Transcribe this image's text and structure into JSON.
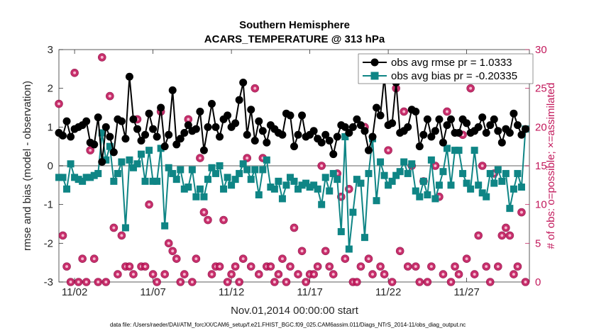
{
  "chart_data": {
    "type": "line",
    "title": "Southern Hemisphere",
    "subtitle": "ACARS_TEMPERATURE @ 313 hPa",
    "xlabel": "Nov.01,2014 00:00:00 start",
    "ylabel": "rmse and bias (model - observation)",
    "ylabel_right": "# of obs: o=possible; ×=assimilated",
    "footnote": "data file: /Users/raeder/DAI/ATM_forcXX/CAM6_setup/f.e21.FHIST_BGC.f09_025.CAM6assim.011/Diags_NTrS_2014-11/obs_diag_output.nc",
    "xlim": [
      0,
      30
    ],
    "ylim": [
      -3,
      3
    ],
    "ylim_right": [
      0,
      30
    ],
    "x_ticks": [
      1,
      6,
      11,
      16,
      21,
      26
    ],
    "x_tick_labels": [
      "11/02",
      "11/07",
      "11/12",
      "11/17",
      "11/22",
      "11/27"
    ],
    "y_ticks": [
      -3,
      -2,
      -1,
      0,
      1,
      2,
      3
    ],
    "y_tick_labels": [
      "-3",
      "-2",
      "-1",
      "0",
      "1",
      "2",
      "3"
    ],
    "y_ticks_right": [
      0,
      5,
      10,
      15,
      20,
      25,
      30
    ],
    "y_tick_labels_right": [
      "0",
      "5",
      "10",
      "15",
      "20",
      "25",
      "30"
    ],
    "legend_position": "top-right",
    "grid": false,
    "zero_line": true,
    "colors": {
      "rmse": "#000000",
      "bias": "#0f8585",
      "nobs": "#c2185b",
      "zero": "#a6a6a6"
    },
    "series": [
      {
        "name": "obs avg rmse pr = 1.0333",
        "axis": "left",
        "x": [
          0.0,
          0.25,
          0.5,
          0.75,
          1.0,
          1.25,
          1.5,
          1.75,
          2.0,
          2.25,
          2.5,
          2.75,
          3.0,
          3.25,
          3.5,
          3.75,
          4.0,
          4.25,
          4.5,
          4.75,
          5.0,
          5.25,
          5.5,
          5.75,
          6.0,
          6.25,
          6.5,
          6.75,
          7.0,
          7.25,
          7.5,
          7.75,
          8.0,
          8.25,
          8.5,
          8.75,
          9.0,
          9.25,
          9.5,
          9.75,
          10.0,
          10.25,
          10.5,
          10.75,
          11.0,
          11.25,
          11.5,
          11.75,
          12.0,
          12.25,
          12.5,
          12.75,
          13.0,
          13.25,
          13.5,
          13.75,
          14.0,
          14.25,
          14.5,
          14.75,
          15.0,
          15.25,
          15.5,
          15.75,
          16.0,
          16.25,
          16.5,
          16.75,
          17.0,
          17.25,
          17.5,
          17.75,
          18.0,
          18.25,
          18.5,
          18.75,
          19.0,
          19.25,
          19.5,
          19.75,
          20.0,
          20.25,
          20.5,
          20.75,
          21.0,
          21.25,
          21.5,
          21.75,
          22.0,
          22.25,
          22.5,
          22.75,
          23.0,
          23.25,
          23.5,
          23.75,
          24.0,
          24.25,
          24.5,
          24.75,
          25.0,
          25.25,
          25.5,
          25.75,
          26.0,
          26.25,
          26.5,
          26.75,
          27.0,
          27.25,
          27.5,
          27.75,
          28.0,
          28.25,
          28.5,
          28.75,
          29.0,
          29.25,
          29.5,
          29.75
        ],
        "values": [
          0.85,
          0.78,
          1.15,
          0.75,
          0.95,
          1.0,
          1.05,
          1.15,
          0.6,
          0.55,
          1.25,
          0.1,
          1.0,
          0.75,
          0.35,
          1.2,
          1.15,
          0.7,
          2.3,
          1.2,
          0.95,
          0.65,
          0.8,
          1.35,
          0.95,
          0.75,
          1.5,
          0.5,
          0.8,
          1.95,
          0.55,
          0.7,
          0.85,
          1.05,
          0.9,
          0.95,
          1.4,
          0.4,
          1.0,
          1.6,
          1.0,
          0.75,
          1.2,
          1.3,
          1.0,
          1.1,
          1.7,
          2.15,
          0.8,
          1.45,
          0.65,
          1.15,
          0.9,
          0.6,
          1.05,
          0.95,
          0.85,
          0.8,
          1.35,
          1.3,
          0.5,
          0.8,
          1.3,
          0.75,
          0.8,
          0.9,
          0.7,
          0.6,
          0.8,
          0.65,
          0.3,
          0.75,
          1.05,
          1.0,
          0.85,
          1.0,
          1.2,
          1.05,
          0.9,
          0.4,
          0.75,
          1.5,
          1.3,
          2.3,
          1.05,
          1.1,
          2.15,
          0.85,
          0.9,
          1.0,
          1.45,
          1.4,
          0.5,
          0.8,
          1.2,
          0.75,
          0.9,
          1.2,
          0.6,
          1.05,
          1.2,
          0.85,
          0.85,
          1.2,
          1.1,
          0.85,
          0.9,
          1.0,
          1.25,
          0.85,
          1.05,
          1.2,
          0.9,
          0.6,
          0.95,
          0.85,
          1.35,
          1.05,
          0.8,
          0.95
        ]
      },
      {
        "name": "obs avg bias pr = -0.20335",
        "axis": "left",
        "x": [
          0.0,
          0.25,
          0.5,
          0.75,
          1.0,
          1.25,
          1.5,
          1.75,
          2.0,
          2.25,
          2.5,
          2.75,
          3.0,
          3.25,
          3.5,
          3.75,
          4.0,
          4.25,
          4.5,
          4.75,
          5.0,
          5.25,
          5.5,
          5.75,
          6.0,
          6.25,
          6.5,
          6.75,
          7.0,
          7.25,
          7.5,
          7.75,
          8.0,
          8.25,
          8.5,
          8.75,
          9.0,
          9.25,
          9.5,
          9.75,
          10.0,
          10.25,
          10.5,
          10.75,
          11.0,
          11.25,
          11.5,
          11.75,
          12.0,
          12.25,
          12.5,
          12.75,
          13.0,
          13.25,
          13.5,
          13.75,
          14.0,
          14.25,
          14.5,
          14.75,
          15.0,
          15.25,
          15.5,
          15.75,
          16.0,
          16.25,
          16.5,
          16.75,
          17.0,
          17.25,
          17.5,
          17.75,
          18.0,
          18.25,
          18.5,
          18.75,
          19.0,
          19.25,
          19.5,
          19.75,
          20.0,
          20.25,
          20.5,
          20.75,
          21.0,
          21.25,
          21.5,
          21.75,
          22.0,
          22.25,
          22.5,
          22.75,
          23.0,
          23.25,
          23.5,
          23.75,
          24.0,
          24.25,
          24.5,
          24.75,
          25.0,
          25.25,
          25.5,
          25.75,
          26.0,
          26.25,
          26.5,
          26.75,
          27.0,
          27.25,
          27.5,
          27.75,
          28.0,
          28.25,
          28.5,
          28.75,
          29.0,
          29.25,
          29.5,
          29.75
        ],
        "values": [
          -0.3,
          -0.3,
          -0.6,
          0.05,
          -0.3,
          -0.35,
          -0.4,
          -0.3,
          -0.3,
          -0.25,
          -0.2,
          0.85,
          0.15,
          0.5,
          -0.4,
          -0.2,
          0.1,
          -1.6,
          0.15,
          -0.05,
          0.05,
          0.3,
          -0.4,
          0.4,
          -0.4,
          -0.4,
          0.45,
          -1.55,
          -0.05,
          -0.2,
          -0.35,
          -0.1,
          -0.6,
          -0.55,
          -0.1,
          -0.8,
          -0.6,
          -0.8,
          -0.35,
          -0.05,
          -0.2,
          0.0,
          -0.6,
          -0.3,
          -0.5,
          -0.35,
          -0.2,
          0.05,
          -0.1,
          -0.35,
          -0.1,
          -0.75,
          -0.1,
          0.15,
          -0.55,
          -0.6,
          -0.4,
          -0.85,
          -0.5,
          -0.3,
          -0.4,
          -0.6,
          -0.5,
          -0.45,
          -0.55,
          -0.5,
          -0.6,
          -1.0,
          -0.3,
          -0.65,
          -0.2,
          -0.35,
          -1.7,
          0.75,
          -2.15,
          -1.2,
          -0.35,
          -0.45,
          -1.85,
          -0.2,
          0.7,
          -0.9,
          0.1,
          -0.25,
          -0.5,
          -0.4,
          -0.25,
          -0.15,
          0.1,
          -0.2,
          0.05,
          -0.65,
          -0.8,
          -0.4,
          -0.75,
          0.15,
          -0.85,
          -0.5,
          -0.15,
          0.45,
          -0.5,
          0.4,
          0.4,
          -0.2,
          -0.45,
          -0.6,
          0.4,
          -0.5,
          -0.7,
          -0.8,
          -0.2,
          -0.45,
          -0.1,
          -0.4,
          -0.2,
          -1.1,
          -0.6,
          -0.2,
          -0.55,
          0.95
        ]
      },
      {
        "name": "",
        "axis": "right",
        "marker": "circle",
        "x": [
          0.0,
          0.25,
          0.5,
          0.75,
          1.0,
          1.25,
          1.5,
          1.75,
          2.0,
          2.25,
          2.5,
          2.75,
          3.0,
          3.25,
          3.5,
          3.75,
          4.0,
          4.25,
          4.5,
          4.75,
          5.0,
          5.25,
          5.5,
          5.75,
          6.0,
          6.25,
          6.5,
          6.75,
          7.0,
          7.25,
          7.5,
          7.75,
          8.0,
          8.25,
          8.5,
          8.75,
          9.0,
          9.25,
          9.5,
          9.75,
          10.0,
          10.25,
          10.5,
          10.75,
          11.0,
          11.25,
          11.5,
          11.75,
          12.0,
          12.25,
          12.5,
          12.75,
          13.0,
          13.25,
          13.5,
          13.75,
          14.0,
          14.25,
          14.5,
          14.75,
          15.0,
          15.25,
          15.5,
          15.75,
          16.0,
          16.25,
          16.5,
          16.75,
          17.0,
          17.25,
          17.5,
          17.75,
          18.0,
          18.25,
          18.5,
          18.75,
          19.0,
          19.25,
          19.5,
          19.75,
          20.0,
          20.25,
          20.5,
          20.75,
          21.0,
          21.25,
          21.5,
          21.75,
          22.0,
          22.25,
          22.5,
          22.75,
          23.0,
          23.25,
          23.5,
          23.75,
          24.0,
          24.25,
          24.5,
          24.75,
          25.0,
          25.25,
          25.5,
          25.75,
          26.0,
          26.25,
          26.5,
          26.75,
          27.0,
          27.25,
          27.5,
          27.75,
          28.0,
          28.25,
          28.5,
          28.75,
          29.0,
          29.25,
          29.5,
          29.75
        ],
        "values": [
          23,
          6,
          2,
          0,
          27,
          0,
          3,
          0,
          17,
          3,
          0,
          29,
          0,
          24,
          7,
          1,
          6,
          2,
          2,
          1,
          21,
          2,
          2,
          10,
          1,
          0,
          22,
          1,
          5,
          4,
          3,
          0,
          1,
          21,
          0,
          3,
          16,
          9,
          8,
          1,
          2,
          2,
          8,
          0,
          1,
          2,
          0,
          3,
          16,
          2,
          25,
          1,
          16,
          2,
          2,
          0,
          1,
          3,
          0,
          2,
          7,
          1,
          4,
          0,
          1,
          1,
          2,
          15,
          4,
          2,
          1,
          14,
          11,
          3,
          12,
          0,
          0,
          2,
          20,
          3,
          1,
          27,
          2,
          1,
          17,
          0,
          25,
          4,
          22,
          2,
          15,
          2,
          0,
          13,
          0,
          2,
          15,
          11,
          1,
          22,
          0,
          2,
          1,
          19,
          3,
          25,
          1,
          6,
          15,
          2,
          0,
          14,
          2,
          6,
          7,
          6,
          1,
          2,
          9,
          0
        ]
      }
    ]
  }
}
